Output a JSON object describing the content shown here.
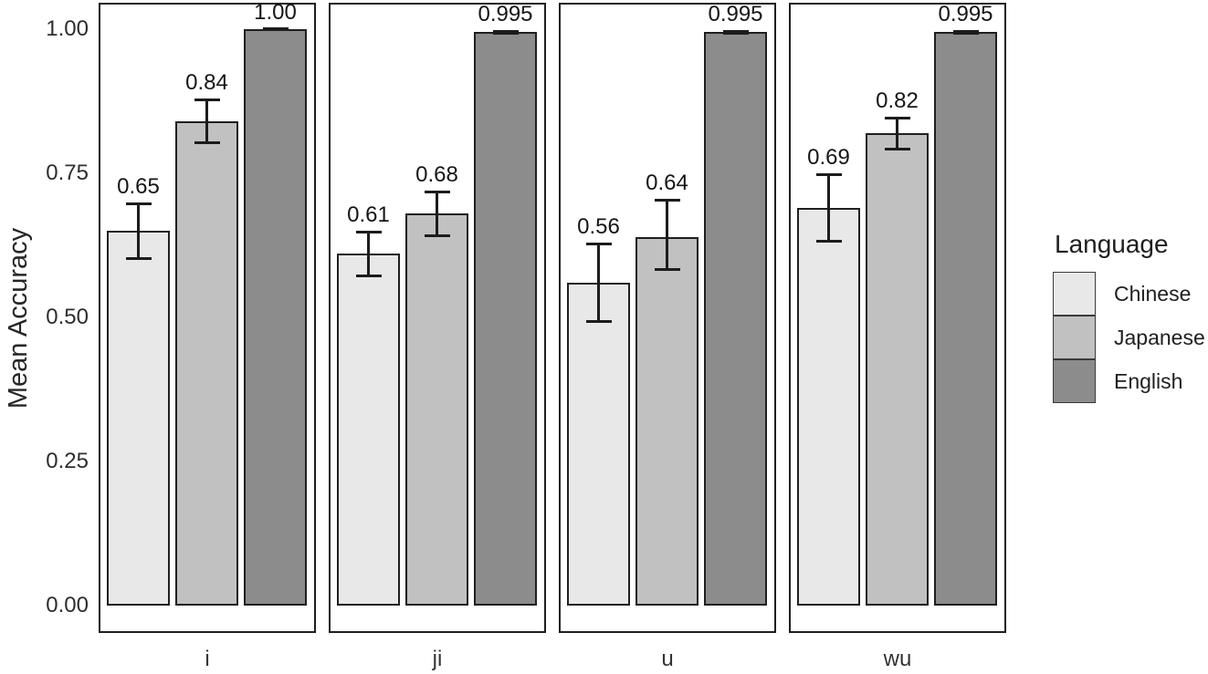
{
  "chart_data": {
    "type": "bar",
    "title": "",
    "xlabel": "",
    "ylabel": "Mean Accuracy",
    "ylim": [
      0,
      1.0
    ],
    "grid": false,
    "yticks": [
      0.0,
      0.25,
      0.5,
      0.75,
      1.0
    ],
    "ytick_labels": [
      "0.00",
      "0.25",
      "0.50",
      "0.75",
      "1.00"
    ],
    "facets": [
      "i",
      "ji",
      "u",
      "wu"
    ],
    "series": [
      {
        "name": "Chinese",
        "color": "#e8e8e8",
        "values": [
          0.65,
          0.61,
          0.56,
          0.69
        ],
        "err_low": [
          0.6,
          0.57,
          0.49,
          0.63
        ],
        "err_high": [
          0.7,
          0.65,
          0.63,
          0.75
        ],
        "labels": [
          "0.65",
          "0.61",
          "0.56",
          "0.69"
        ]
      },
      {
        "name": "Japanese",
        "color": "#c1c1c1",
        "values": [
          0.84,
          0.68,
          0.64,
          0.82
        ],
        "err_low": [
          0.8,
          0.64,
          0.58,
          0.79
        ],
        "err_high": [
          0.88,
          0.72,
          0.705,
          0.848
        ],
        "labels": [
          "0.84",
          "0.68",
          "0.64",
          "0.82"
        ]
      },
      {
        "name": "English",
        "color": "#8c8c8c",
        "values": [
          1.0,
          0.995,
          0.995,
          0.995
        ],
        "err_low": [
          0.998,
          0.99,
          0.99,
          0.99
        ],
        "err_high": [
          1.001,
          0.999,
          0.999,
          0.999
        ],
        "labels": [
          "1.00",
          "0.995",
          "0.995",
          "0.995"
        ]
      }
    ],
    "legend": {
      "title": "Language",
      "position": "right",
      "entries": [
        "Chinese",
        "Japanese",
        "English"
      ]
    }
  }
}
